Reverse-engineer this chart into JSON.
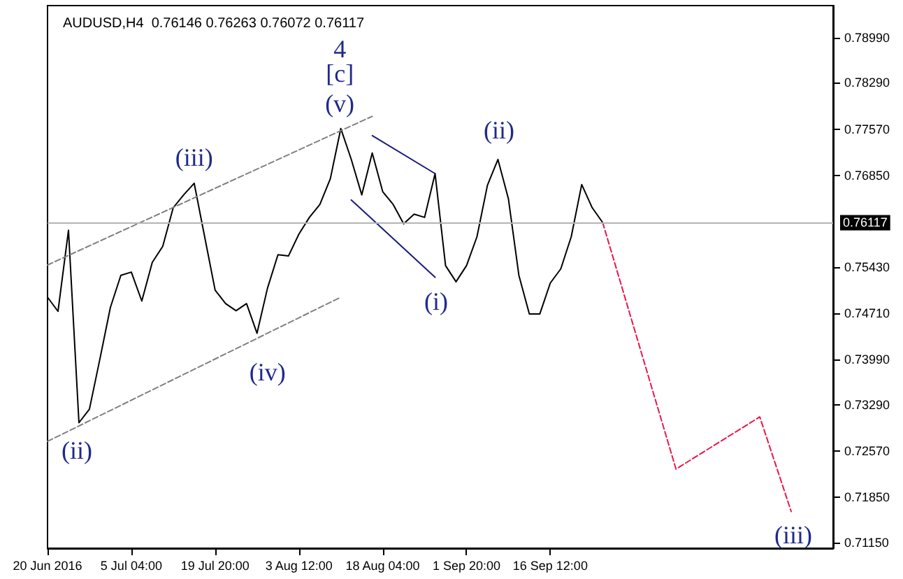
{
  "chart_data": {
    "type": "line",
    "title": "AUDUSD,H4  0.76146 0.76263 0.76072 0.76117",
    "categories": [
      "20 Jun 2016",
      null,
      null,
      null,
      null,
      null,
      null,
      null,
      "5 Jul 04:00",
      null,
      null,
      null,
      null,
      null,
      null,
      null,
      "19 Jul 20:00",
      null,
      null,
      null,
      null,
      null,
      null,
      null,
      "3 Aug 12:00",
      null,
      null,
      null,
      null,
      null,
      null,
      null,
      "18 Aug 04:00",
      null,
      null,
      null,
      null,
      null,
      null,
      null,
      "1 Sep 20:00",
      null,
      null,
      null,
      null,
      null,
      null,
      null,
      "16 Sep 12:00",
      null,
      null,
      null,
      null,
      null,
      null,
      null,
      null,
      null,
      null,
      null,
      null,
      null,
      null,
      null,
      null,
      null,
      null,
      null,
      null,
      null,
      null,
      null,
      null,
      null,
      null,
      null
    ],
    "ylim": [
      0.7106,
      0.7949
    ],
    "yticks": [
      {
        "value": 0.7899,
        "label": "0.78990"
      },
      {
        "value": 0.7829,
        "label": "0.78290"
      },
      {
        "value": 0.7757,
        "label": "0.77570"
      },
      {
        "value": 0.7685,
        "label": "0.76850"
      },
      {
        "value": 0.7543,
        "label": "0.75430"
      },
      {
        "value": 0.7471,
        "label": "0.74710"
      },
      {
        "value": 0.7399,
        "label": "0.73990"
      },
      {
        "value": 0.7329,
        "label": "0.73290"
      },
      {
        "value": 0.7257,
        "label": "0.72570"
      },
      {
        "value": 0.7185,
        "label": "0.71850"
      },
      {
        "value": 0.7115,
        "label": "0.71150"
      }
    ],
    "series": [
      {
        "color": "#000000",
        "line_style": "solid",
        "values": [
          0.7496,
          0.7474,
          0.76,
          0.7301,
          0.7322,
          0.74,
          0.748,
          0.753,
          0.7535,
          0.749,
          0.755,
          0.7575,
          0.7635,
          0.7655,
          0.7673,
          0.759,
          0.7507,
          0.7486,
          0.7475,
          0.7486,
          0.744,
          0.751,
          0.7562,
          0.756,
          0.7594,
          0.762,
          0.764,
          0.768,
          0.7758,
          0.771,
          0.7655,
          0.772,
          0.766,
          0.764,
          0.761,
          0.7625,
          0.762,
          0.7688,
          0.7545,
          0.752,
          0.7545,
          0.759,
          0.767,
          0.771,
          0.7649,
          0.753,
          0.747,
          0.747,
          0.7518,
          0.754,
          0.759,
          0.7671,
          0.7635,
          0.7612,
          null,
          null,
          null,
          null,
          null,
          null,
          null,
          null,
          null,
          null,
          null,
          null,
          null,
          null,
          null,
          null,
          null,
          null,
          null,
          null,
          null,
          null
        ]
      },
      {
        "color": "#e8174a",
        "line_style": "dashed",
        "values": [
          null,
          null,
          null,
          null,
          null,
          null,
          null,
          null,
          null,
          null,
          null,
          null,
          null,
          null,
          null,
          null,
          null,
          null,
          null,
          null,
          null,
          null,
          null,
          null,
          null,
          null,
          null,
          null,
          null,
          null,
          null,
          null,
          null,
          null,
          null,
          null,
          null,
          null,
          null,
          null,
          null,
          null,
          null,
          null,
          null,
          null,
          null,
          null,
          null,
          null,
          null,
          null,
          null,
          0.7612,
          null,
          null,
          null,
          null,
          null,
          null,
          0.7229,
          null,
          null,
          null,
          null,
          null,
          null,
          null,
          0.731,
          null,
          null,
          0.7163,
          null,
          null,
          null,
          null
        ]
      },
      {
        "color": "#808080",
        "line_style": "dashed",
        "values": [
          0.7546,
          null,
          null,
          null,
          null,
          null,
          null,
          null,
          null,
          null,
          null,
          null,
          null,
          null,
          null,
          null,
          null,
          null,
          null,
          null,
          null,
          null,
          null,
          null,
          null,
          null,
          null,
          null,
          null,
          null,
          null,
          0.7777,
          null,
          null,
          null,
          null,
          null,
          null,
          null,
          null,
          null,
          null,
          null,
          null,
          null,
          null,
          null,
          null,
          null,
          null,
          null,
          null,
          null,
          null,
          null,
          null,
          null,
          null,
          null,
          null,
          null,
          null,
          null,
          null,
          null,
          null,
          null,
          null,
          null,
          null,
          null,
          null,
          null,
          null,
          null,
          null
        ]
      },
      {
        "color": "#808080",
        "line_style": "dashed",
        "values": [
          0.7272,
          null,
          null,
          null,
          null,
          null,
          null,
          null,
          null,
          null,
          null,
          null,
          null,
          null,
          null,
          null,
          null,
          null,
          null,
          null,
          null,
          null,
          null,
          null,
          null,
          null,
          null,
          null,
          0.7496,
          null,
          null,
          null,
          null,
          null,
          null,
          null,
          null,
          null,
          null,
          null,
          null,
          null,
          null,
          null,
          null,
          null,
          null,
          null,
          null,
          null,
          null,
          null,
          null,
          null,
          null,
          null,
          null,
          null,
          null,
          null,
          null,
          null,
          null,
          null,
          null,
          null,
          null,
          null,
          null,
          null,
          null,
          null,
          null,
          null,
          null,
          null
        ]
      },
      {
        "color": "#1a1a7a",
        "line_style": "solid",
        "values": [
          null,
          null,
          null,
          null,
          null,
          null,
          null,
          null,
          null,
          null,
          null,
          null,
          null,
          null,
          null,
          null,
          null,
          null,
          null,
          null,
          null,
          null,
          null,
          null,
          null,
          null,
          null,
          null,
          null,
          null,
          null,
          0.7747,
          null,
          null,
          null,
          null,
          null,
          0.7688,
          null,
          null,
          null,
          null,
          null,
          null,
          null,
          null,
          null,
          null,
          null,
          null,
          null,
          null,
          null,
          null,
          null,
          null,
          null,
          null,
          null,
          null,
          null,
          null,
          null,
          null,
          null,
          null,
          null,
          null,
          null,
          null,
          null,
          null,
          null,
          null,
          null,
          null
        ]
      },
      {
        "color": "#1a1a7a",
        "line_style": "solid",
        "values": [
          null,
          null,
          null,
          null,
          null,
          null,
          null,
          null,
          null,
          null,
          null,
          null,
          null,
          null,
          null,
          null,
          null,
          null,
          null,
          null,
          null,
          null,
          null,
          null,
          null,
          null,
          null,
          null,
          null,
          0.7647,
          null,
          null,
          null,
          null,
          null,
          null,
          null,
          0.7527,
          null,
          null,
          null,
          null,
          null,
          null,
          null,
          null,
          null,
          null,
          null,
          null,
          null,
          null,
          null,
          null,
          null,
          null,
          null,
          null,
          null,
          null,
          null,
          null,
          null,
          null,
          null,
          null,
          null,
          null,
          null,
          null,
          null,
          null,
          null,
          null,
          null,
          null
        ]
      }
    ],
    "ref_lines": [
      {
        "axis": "y",
        "value": 0.76117,
        "label": "0.76117"
      }
    ],
    "annotations": [
      "4",
      "[c]",
      "(v)",
      "(iii)",
      "(iv)",
      "(ii)",
      "(i)",
      "(ii)",
      "(iii)"
    ],
    "marker": "none",
    "grid": false
  }
}
